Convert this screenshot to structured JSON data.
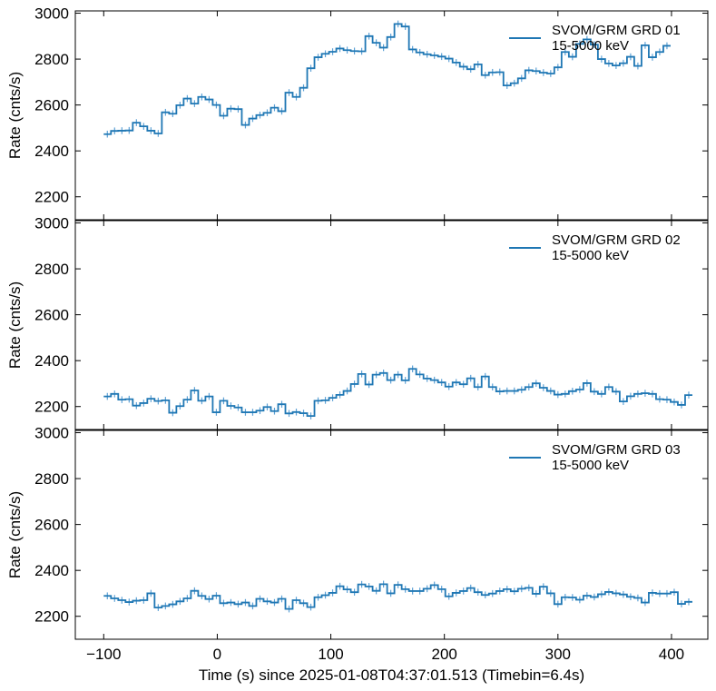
{
  "chart_data": {
    "type": "line",
    "drawstyle": "steps",
    "errorbars": true,
    "shared_x": {
      "label": "Time (s) since 2025-01-08T04:37:01.513 (Timebin=6.4s)",
      "xlim": [
        -125,
        432
      ],
      "ticks": [
        -100,
        0,
        100,
        200,
        300,
        400
      ],
      "tick_labels": [
        "−100",
        "0",
        "100",
        "200",
        "300",
        "400"
      ]
    },
    "x_start": -100,
    "bin_width": 6.4,
    "color": "#1f77b4",
    "errcolor": "#5fa2d6",
    "panels": [
      {
        "ylabel": "Rate (cnts/s)",
        "ylim": [
          2100,
          3010
        ],
        "yticks": [
          2200,
          2400,
          2600,
          2800,
          3000
        ],
        "legend": {
          "series": "SVOM/GRM GRD 01",
          "band": "15-5000 keV",
          "loc": "upper right"
        },
        "err": 15,
        "values": [
          2473,
          2487,
          2488,
          2489,
          2523,
          2507,
          2488,
          2476,
          2568,
          2562,
          2599,
          2628,
          2606,
          2635,
          2624,
          2600,
          2553,
          2584,
          2582,
          2513,
          2541,
          2556,
          2566,
          2588,
          2573,
          2654,
          2635,
          2675,
          2760,
          2808,
          2823,
          2832,
          2846,
          2839,
          2835,
          2834,
          2900,
          2871,
          2850,
          2896,
          2953,
          2942,
          2842,
          2829,
          2821,
          2816,
          2811,
          2802,
          2785,
          2767,
          2756,
          2777,
          2730,
          2742,
          2743,
          2685,
          2695,
          2716,
          2751,
          2748,
          2741,
          2737,
          2764,
          2831,
          2810,
          2866,
          2886,
          2863,
          2800,
          2781,
          2772,
          2782,
          2810,
          2770,
          2860,
          2808,
          2831,
          2858
        ]
      },
      {
        "ylabel": "Rate (cnts/s)",
        "ylim": [
          2100,
          3010
        ],
        "yticks": [
          2200,
          2400,
          2600,
          2800,
          3000
        ],
        "legend": {
          "series": "SVOM/GRM GRD 02",
          "band": "15-5000 keV",
          "loc": "upper right"
        },
        "err": 15,
        "values": [
          2244,
          2255,
          2230,
          2232,
          2204,
          2215,
          2234,
          2224,
          2227,
          2173,
          2202,
          2230,
          2270,
          2225,
          2244,
          2175,
          2225,
          2203,
          2196,
          2175,
          2175,
          2182,
          2198,
          2180,
          2210,
          2170,
          2176,
          2171,
          2159,
          2225,
          2227,
          2238,
          2251,
          2268,
          2298,
          2342,
          2296,
          2339,
          2346,
          2315,
          2339,
          2314,
          2364,
          2340,
          2322,
          2315,
          2305,
          2287,
          2305,
          2297,
          2323,
          2285,
          2331,
          2285,
          2266,
          2268,
          2268,
          2273,
          2285,
          2301,
          2282,
          2268,
          2252,
          2255,
          2267,
          2274,
          2302,
          2265,
          2255,
          2285,
          2265,
          2222,
          2245,
          2255,
          2258,
          2255,
          2232,
          2230,
          2220,
          2207,
          2250
        ]
      },
      {
        "ylabel": "Rate (cnts/s)",
        "ylim": [
          2100,
          3010
        ],
        "yticks": [
          2200,
          2400,
          2600,
          2800,
          3000
        ],
        "legend": {
          "series": "SVOM/GRM GRD 03",
          "band": "15-5000 keV",
          "loc": "upper right"
        },
        "err": 15,
        "values": [
          2289,
          2278,
          2270,
          2262,
          2268,
          2270,
          2300,
          2238,
          2245,
          2252,
          2265,
          2278,
          2311,
          2289,
          2275,
          2290,
          2257,
          2260,
          2253,
          2260,
          2245,
          2276,
          2265,
          2260,
          2276,
          2232,
          2270,
          2257,
          2240,
          2283,
          2292,
          2302,
          2331,
          2317,
          2305,
          2339,
          2330,
          2311,
          2340,
          2300,
          2337,
          2318,
          2310,
          2310,
          2320,
          2336,
          2318,
          2287,
          2302,
          2310,
          2323,
          2305,
          2293,
          2299,
          2310,
          2318,
          2309,
          2320,
          2324,
          2298,
          2329,
          2300,
          2253,
          2283,
          2282,
          2272,
          2290,
          2284,
          2296,
          2306,
          2300,
          2295,
          2285,
          2280,
          2260,
          2302,
          2299,
          2299,
          2305,
          2254,
          2263
        ]
      }
    ]
  }
}
